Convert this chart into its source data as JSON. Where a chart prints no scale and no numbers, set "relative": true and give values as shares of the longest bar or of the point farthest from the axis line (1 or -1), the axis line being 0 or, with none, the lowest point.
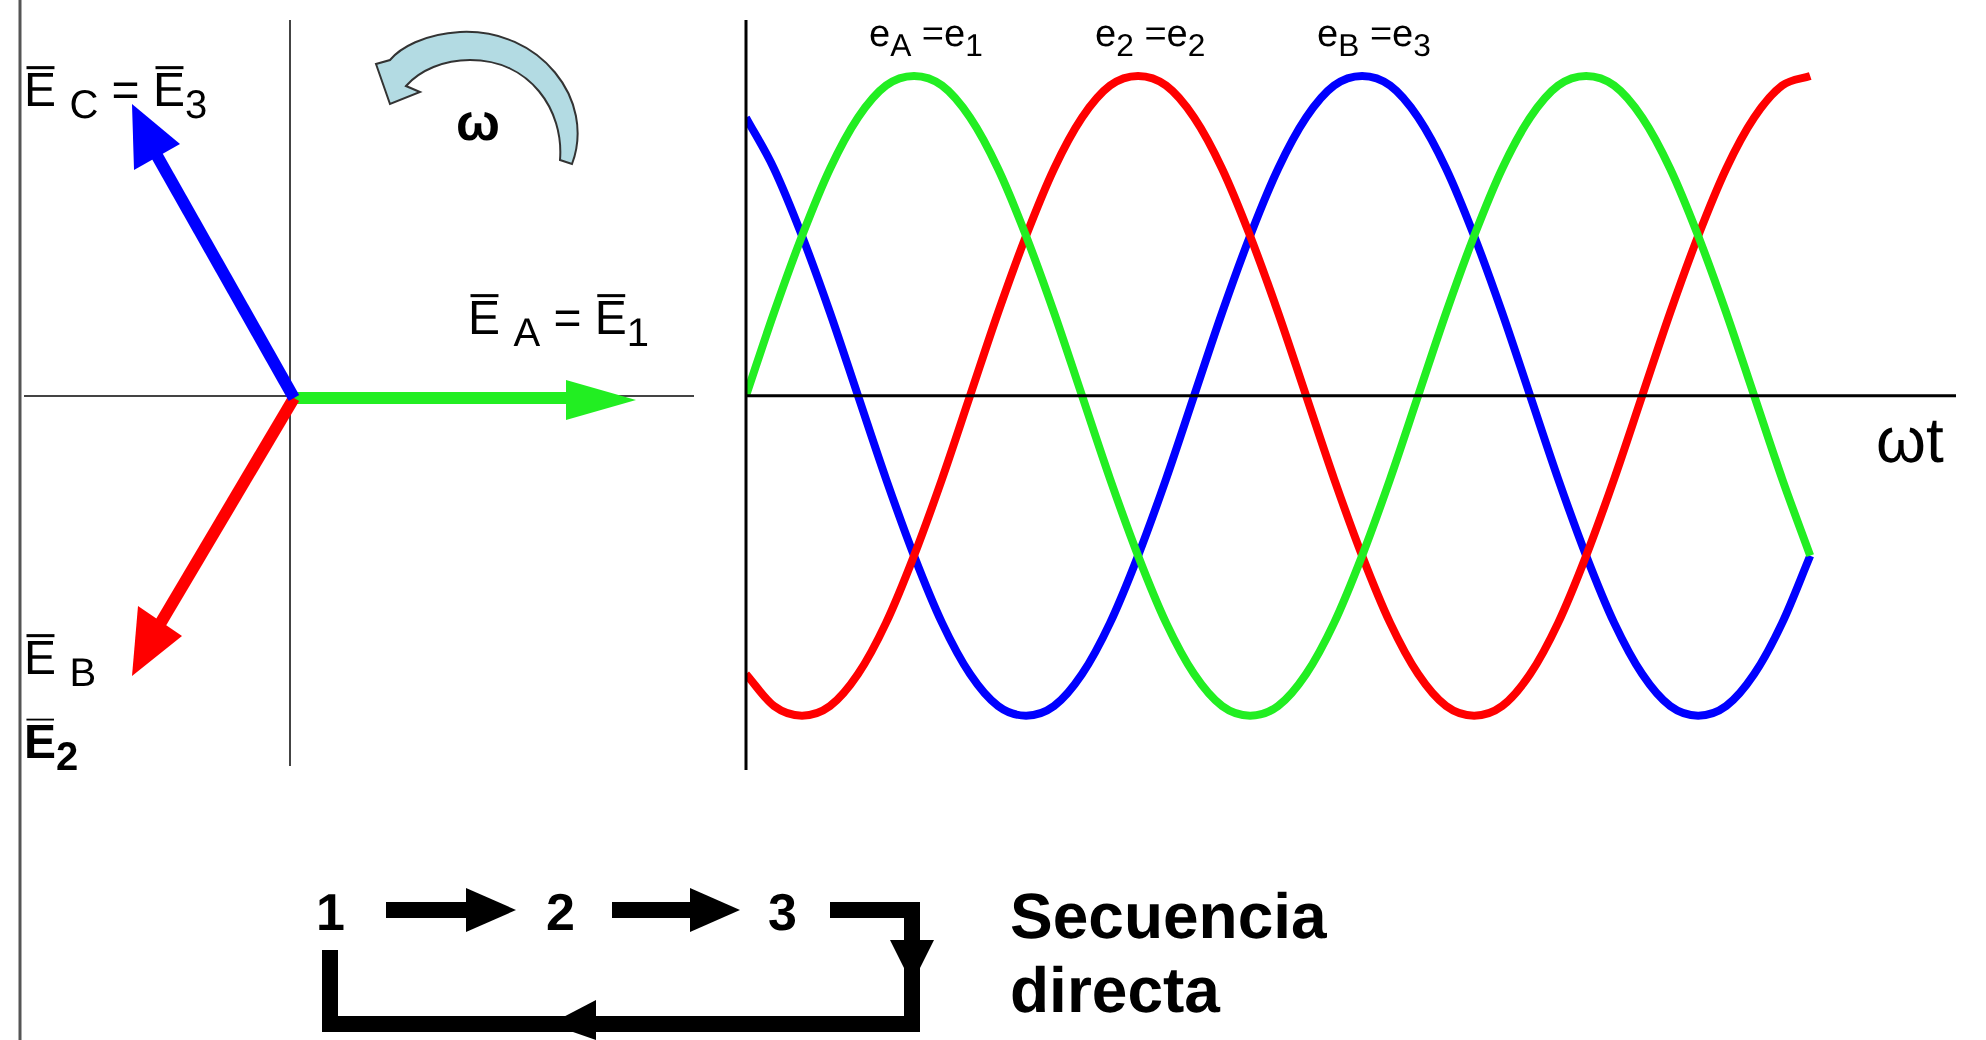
{
  "chart_data": {
    "type": "line",
    "relative": true,
    "xlabel": "ωt",
    "legend": false,
    "marker": "none",
    "line_style": "solid",
    "categories": [
      null,
      null,
      null,
      null,
      null,
      null,
      null,
      null,
      null,
      null,
      null,
      null,
      null,
      null,
      null,
      null,
      null,
      null,
      null,
      null,
      null,
      null,
      null,
      null,
      null,
      null,
      null,
      null,
      null,
      null,
      null,
      null,
      null,
      null,
      null,
      null,
      null,
      null,
      null
    ],
    "series": [
      {
        "name": "e$_{A}$ =e$_{1}$",
        "color": "#22ee22",
        "values": [
          0,
          0.26,
          0.5,
          0.71,
          0.87,
          0.97,
          1,
          0.97,
          0.87,
          0.71,
          0.5,
          0.26,
          0,
          -0.26,
          -0.5,
          -0.71,
          -0.87,
          -0.97,
          -1,
          -0.97,
          -0.87,
          -0.71,
          -0.5,
          -0.26,
          0,
          0.26,
          0.5,
          0.71,
          0.87,
          0.97,
          1,
          0.97,
          0.87,
          0.71,
          0.5,
          0.26,
          0,
          -0.26,
          -0.5
        ]
      },
      {
        "name": "e$_{2}$ =e$_{2}$",
        "color": "#ff0000",
        "values": [
          -0.87,
          -0.97,
          -1,
          -0.97,
          -0.87,
          -0.71,
          -0.5,
          -0.26,
          0,
          0.26,
          0.5,
          0.71,
          0.87,
          0.97,
          1,
          0.97,
          0.87,
          0.71,
          0.5,
          0.26,
          0,
          -0.26,
          -0.5,
          -0.71,
          -0.87,
          -0.97,
          -1,
          -0.97,
          -0.87,
          -0.71,
          -0.5,
          -0.26,
          0,
          0.26,
          0.5,
          0.71,
          0.87,
          0.97,
          1
        ]
      },
      {
        "name": "e$_{B}$ =e$_{3}$",
        "color": "#0000ff",
        "values": [
          0.87,
          0.71,
          0.5,
          0.26,
          0,
          -0.26,
          -0.5,
          -0.71,
          -0.87,
          -0.97,
          -1,
          -0.97,
          -0.87,
          -0.71,
          -0.5,
          -0.26,
          0,
          0.26,
          0.5,
          0.71,
          0.87,
          0.97,
          1,
          0.97,
          0.87,
          0.71,
          0.5,
          0.26,
          0,
          -0.26,
          -0.5,
          -0.71,
          -0.87,
          -0.97,
          -1,
          -0.97,
          -0.87,
          -0.71,
          -0.5
        ]
      }
    ],
    "annotations": [
      "E̅ $_{C}$ = E̅$_{3}$",
      "ω",
      "E̅ $_{A}$ = E̅$_{1}$",
      "E̅ $_{B}$",
      "E̅$_{2}$",
      "1",
      "2",
      "3",
      "Secuencia directa"
    ]
  }
}
